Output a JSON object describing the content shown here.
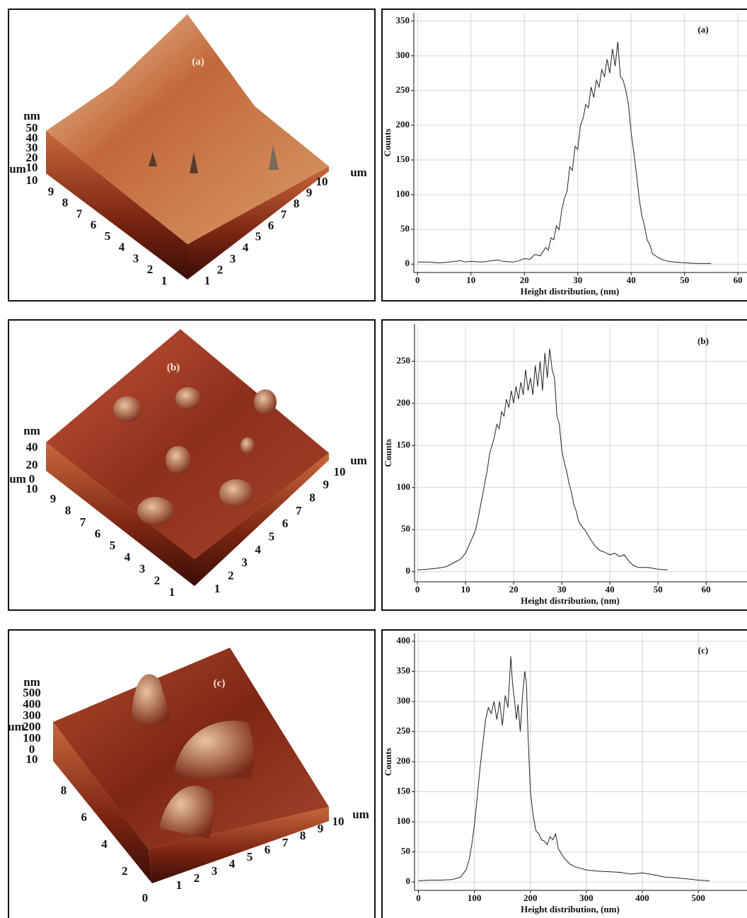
{
  "afm_panels": [
    {
      "label": "(a)",
      "z_unit": "nm",
      "z_ticks": [
        "50",
        "40",
        "30",
        "20",
        "10"
      ],
      "xy_unit": "um",
      "left_unit": "um",
      "left_top": "10",
      "left_ticks": [
        "9",
        "8",
        "7",
        "6",
        "5",
        "4",
        "3",
        "2",
        "1"
      ],
      "right_ticks": [
        "1",
        "2",
        "3",
        "4",
        "5",
        "6",
        "7",
        "8",
        "9",
        "10"
      ]
    },
    {
      "label": "(b)",
      "z_unit": "nm",
      "z_ticks": [
        "40",
        "20",
        "0"
      ],
      "xy_unit": "um",
      "left_unit": "um",
      "left_top": "10",
      "left_ticks": [
        "9",
        "8",
        "7",
        "6",
        "5",
        "4",
        "3",
        "2",
        "1"
      ],
      "right_ticks": [
        "1",
        "2",
        "3",
        "4",
        "5",
        "6",
        "7",
        "8",
        "9",
        "10"
      ]
    },
    {
      "label": "(c)",
      "z_unit": "nm",
      "z_ticks": [
        "500",
        "400",
        "300",
        "200",
        "100",
        "0"
      ],
      "xy_unit": "um",
      "left_unit": "um",
      "left_top": "10",
      "left_ticks": [
        "8",
        "6",
        "4",
        "2",
        "0"
      ],
      "right_ticks": [
        "1",
        "2",
        "3",
        "4",
        "5",
        "6",
        "7",
        "8",
        "9",
        "10"
      ]
    }
  ],
  "chart_data": [
    {
      "type": "line",
      "annotation": "(a)",
      "xlabel": "Height distribution, (nm)",
      "ylabel": "Counts",
      "color": "#222222",
      "grid": true,
      "xlim": [
        -0.7,
        61.7
      ],
      "ylim": [
        -12,
        362
      ],
      "xticks": [
        0,
        10,
        20,
        30,
        40,
        50,
        60
      ],
      "yticks": [
        0,
        50,
        100,
        150,
        200,
        250,
        300,
        350
      ],
      "x": [
        0,
        2,
        4,
        6,
        8,
        9,
        10,
        12,
        14,
        15,
        16,
        18,
        19,
        20,
        21,
        22,
        23,
        24,
        24.5,
        25,
        25.5,
        26,
        26.5,
        27,
        27.5,
        28,
        28.5,
        29,
        29.5,
        30,
        30.5,
        31,
        31.5,
        32,
        32.5,
        33,
        33.5,
        34,
        34.5,
        35,
        35.5,
        36,
        36.5,
        37,
        37.5,
        38,
        38.5,
        39,
        39.5,
        40,
        40.5,
        41,
        41.5,
        42,
        42.5,
        43,
        43.5,
        44,
        45,
        46,
        47,
        48,
        50,
        52,
        55
      ],
      "values": [
        3,
        3,
        2,
        3,
        5,
        3,
        4,
        3,
        5,
        6,
        4,
        3,
        5,
        8,
        7,
        14,
        12,
        24,
        20,
        38,
        35,
        55,
        50,
        78,
        95,
        105,
        140,
        135,
        170,
        165,
        200,
        210,
        230,
        225,
        255,
        240,
        265,
        255,
        280,
        270,
        295,
        275,
        310,
        285,
        320,
        270,
        265,
        250,
        230,
        190,
        160,
        130,
        95,
        70,
        55,
        35,
        28,
        15,
        10,
        6,
        4,
        3,
        2,
        1,
        1
      ]
    },
    {
      "type": "line",
      "annotation": "(b)",
      "xlabel": "Height distribution, (nm)",
      "ylabel": "Counts",
      "color": "#222222",
      "grid": true,
      "xlim": [
        -0.6,
        68.5
      ],
      "ylim": [
        -12,
        294
      ],
      "xticks": [
        0,
        10,
        20,
        30,
        40,
        50,
        60
      ],
      "yticks": [
        0,
        50,
        100,
        150,
        200,
        250
      ],
      "x": [
        0,
        2,
        4,
        6,
        8,
        9,
        10,
        11,
        12,
        12.5,
        13,
        13.5,
        14,
        14.5,
        15,
        15.5,
        16,
        16.5,
        17,
        17.5,
        18,
        18.5,
        19,
        19.5,
        20,
        20.5,
        21,
        21.5,
        22,
        22.5,
        23,
        23.5,
        24,
        24.5,
        25,
        25.5,
        26,
        26.5,
        27,
        27.5,
        28,
        28.5,
        29,
        29.5,
        30,
        30.5,
        31,
        31.5,
        32,
        32.5,
        33,
        33.5,
        34,
        35,
        36,
        37,
        38,
        39,
        40,
        41,
        42,
        43,
        44,
        45,
        46,
        48,
        50,
        52
      ],
      "values": [
        2,
        3,
        4,
        6,
        12,
        15,
        22,
        35,
        48,
        60,
        75,
        90,
        105,
        120,
        140,
        150,
        160,
        175,
        170,
        190,
        185,
        205,
        195,
        215,
        200,
        220,
        205,
        225,
        210,
        240,
        215,
        230,
        210,
        245,
        220,
        250,
        215,
        260,
        230,
        265,
        240,
        230,
        185,
        175,
        145,
        130,
        120,
        105,
        95,
        80,
        72,
        60,
        55,
        48,
        38,
        30,
        25,
        23,
        20,
        22,
        18,
        20,
        12,
        7,
        5,
        5,
        3,
        2
      ]
    },
    {
      "type": "line",
      "annotation": "(c)",
      "xlabel": "Height distribution, (nm)",
      "ylabel": "Counts",
      "color": "#222222",
      "grid": true,
      "xlim": [
        -7,
        587
      ],
      "ylim": [
        -14,
        413
      ],
      "xticks": [
        0,
        100,
        200,
        300,
        400,
        500
      ],
      "yticks": [
        0,
        50,
        100,
        150,
        200,
        250,
        300,
        350,
        400
      ],
      "x": [
        0,
        20,
        40,
        60,
        75,
        85,
        90,
        95,
        100,
        105,
        110,
        115,
        120,
        125,
        130,
        135,
        140,
        145,
        150,
        155,
        160,
        163,
        165,
        168,
        172,
        175,
        178,
        182,
        186,
        190,
        193,
        196,
        200,
        205,
        210,
        215,
        220,
        225,
        230,
        235,
        240,
        245,
        250,
        260,
        270,
        280,
        300,
        320,
        340,
        360,
        380,
        400,
        420,
        440,
        460,
        480,
        500,
        520
      ],
      "values": [
        2,
        3,
        3,
        4,
        8,
        20,
        35,
        60,
        95,
        140,
        190,
        230,
        270,
        290,
        280,
        300,
        270,
        300,
        260,
        310,
        290,
        340,
        375,
        330,
        300,
        270,
        295,
        250,
        310,
        350,
        330,
        240,
        150,
        110,
        85,
        80,
        70,
        68,
        62,
        75,
        70,
        80,
        55,
        40,
        30,
        25,
        20,
        18,
        17,
        16,
        13,
        15,
        12,
        8,
        7,
        5,
        3,
        2
      ]
    }
  ]
}
